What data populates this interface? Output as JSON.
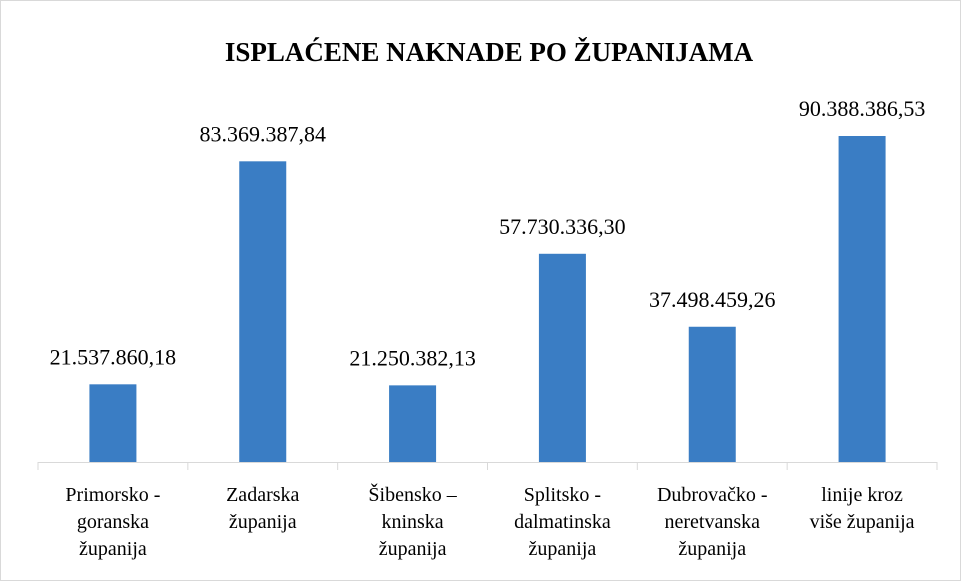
{
  "chart_data": {
    "type": "bar",
    "title": "ISPLAĆENE NAKNADE PO ŽUPANIJAMA",
    "categories": [
      "Primorsko -\ngoranska\nžupanija",
      "Zadarska\nžupanija",
      "Šibensko –\nkninska\nžupanija",
      "Splitsko -\ndalmatinska\nžupanija",
      "Dubrovačko -\nneretvanska\nžupanija",
      "linije  kroz\nviše županija"
    ],
    "values": [
      21537860.18,
      83369387.84,
      21250382.13,
      57730336.3,
      37498459.26,
      90388386.53
    ],
    "value_labels": [
      "21.537.860,18",
      "83.369.387,84",
      "21.250.382,13",
      "57.730.336,30",
      "37.498.459,26",
      "90.388.386,53"
    ],
    "color": "#3a7dc4",
    "grid": false
  }
}
